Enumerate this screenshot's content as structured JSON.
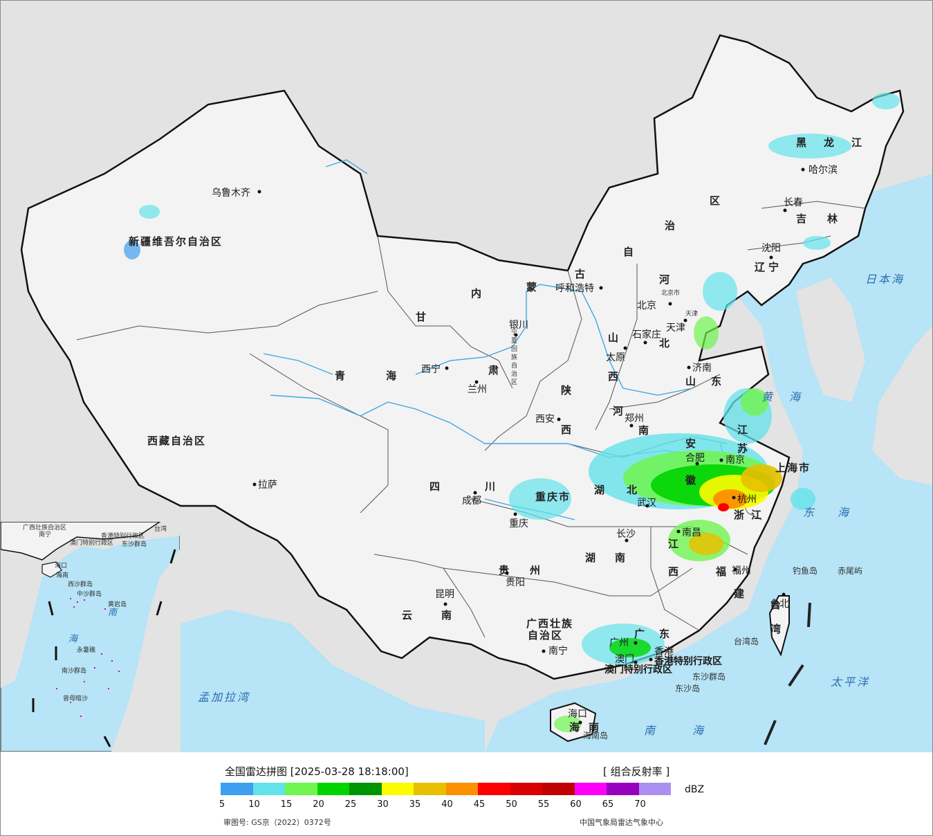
{
  "legend": {
    "title": "全国雷达拼图 [2025-03-28 18:18:00]",
    "product": "[ 组合反射率 ]",
    "unit": "dBZ",
    "ticks": [
      "5",
      "10",
      "15",
      "20",
      "25",
      "30",
      "35",
      "40",
      "45",
      "50",
      "55",
      "60",
      "65",
      "70"
    ],
    "colors": [
      "#3e9ef0",
      "#63e2ea",
      "#70f450",
      "#00d400",
      "#009400",
      "#fcfc00",
      "#e8c000",
      "#fc9000",
      "#fc0000",
      "#d80000",
      "#c00000",
      "#fc00fc",
      "#9800c0",
      "#ac90f0"
    ],
    "approval": "审图号: GS京（2022）0372号",
    "agency": "中国气象局雷达气象中心"
  },
  "map": {
    "provinces": [
      {
        "name": "新疆维吾尔自治区",
        "id": "xinjiang"
      },
      {
        "name": "西藏自治区",
        "id": "xizang"
      },
      {
        "name": "青",
        "id": "qing"
      },
      {
        "name": "海",
        "id": "hai"
      },
      {
        "name": "甘",
        "id": "gan"
      },
      {
        "name": "肃",
        "id": "su"
      },
      {
        "name": "内",
        "id": "nei"
      },
      {
        "name": "蒙",
        "id": "meng"
      },
      {
        "name": "古",
        "id": "gu"
      },
      {
        "name": "自",
        "id": "zi"
      },
      {
        "name": "治",
        "id": "zhi"
      },
      {
        "name": "区",
        "id": "qu"
      },
      {
        "name": "黑",
        "id": "hei"
      },
      {
        "name": "龙",
        "id": "long"
      },
      {
        "name": "江",
        "id": "jiang"
      },
      {
        "name": "吉",
        "id": "ji"
      },
      {
        "name": "林",
        "id": "lin"
      },
      {
        "name": "辽",
        "id": "liao"
      },
      {
        "name": "宁",
        "id": "ning"
      },
      {
        "name": "河",
        "id": "he1"
      },
      {
        "name": "北",
        "id": "bei"
      },
      {
        "name": "山",
        "id": "shan"
      },
      {
        "name": "西",
        "id": "xi"
      },
      {
        "name": "山",
        "id": "shan2"
      },
      {
        "name": "东",
        "id": "dong"
      },
      {
        "name": "陕",
        "id": "shaan"
      },
      {
        "name": "西",
        "id": "xi2"
      },
      {
        "name": "河",
        "id": "he2"
      },
      {
        "name": "南",
        "id": "nan"
      },
      {
        "name": "江",
        "id": "jiang2"
      },
      {
        "name": "苏",
        "id": "su2"
      },
      {
        "name": "安",
        "id": "an"
      },
      {
        "name": "徽",
        "id": "hui"
      },
      {
        "name": "上海市",
        "id": "shanghai"
      },
      {
        "name": "湖",
        "id": "hu"
      },
      {
        "name": "北",
        "id": "bei2"
      },
      {
        "name": "浙",
        "id": "zhe"
      },
      {
        "name": "江",
        "id": "jiang3"
      },
      {
        "name": "四",
        "id": "si"
      },
      {
        "name": "川",
        "id": "chuan"
      },
      {
        "name": "重庆市",
        "id": "chongqing"
      },
      {
        "name": "湖",
        "id": "hu2"
      },
      {
        "name": "南",
        "id": "nan2"
      },
      {
        "name": "江",
        "id": "jiang4"
      },
      {
        "name": "西",
        "id": "xi3"
      },
      {
        "name": "福",
        "id": "fu"
      },
      {
        "name": "建",
        "id": "jian"
      },
      {
        "name": "贵",
        "id": "gui"
      },
      {
        "name": "州",
        "id": "zhou"
      },
      {
        "name": "云",
        "id": "yun"
      },
      {
        "name": "南",
        "id": "nan3"
      },
      {
        "name": "广西壮族",
        "id": "gx1"
      },
      {
        "name": "自治区",
        "id": "gx2"
      },
      {
        "name": "广",
        "id": "guang"
      },
      {
        "name": "东",
        "id": "dong2"
      },
      {
        "name": "海",
        "id": "hai2"
      },
      {
        "name": "南",
        "id": "nan4"
      },
      {
        "name": "台",
        "id": "tai"
      },
      {
        "name": "湾",
        "id": "wan"
      },
      {
        "name": "宁夏回族自治区",
        "id": "ningxia"
      },
      {
        "name": "香港特别行政区",
        "id": "hk"
      },
      {
        "name": "澳门特别行政区",
        "id": "mo"
      },
      {
        "name": "北京市",
        "id": "bjs"
      },
      {
        "name": "天津",
        "id": "tjs"
      }
    ],
    "cities": [
      "乌鲁木齐",
      "拉萨",
      "西宁",
      "兰州",
      "银川",
      "呼和浩特",
      "北京",
      "天津",
      "石家庄",
      "太原",
      "济南",
      "郑州",
      "西安",
      "成都",
      "重庆",
      "贵阳",
      "昆明",
      "南宁",
      "广州",
      "澳门",
      "香港",
      "海口",
      "长沙",
      "武汉",
      "南昌",
      "合肥",
      "南京",
      "杭州",
      "福州",
      "台北",
      "沈阳",
      "长春",
      "哈尔滨"
    ],
    "seas": [
      "日本海",
      "黄",
      "海",
      "东",
      "海",
      "太平洋",
      "南",
      "海",
      "孟加拉湾"
    ],
    "islands": [
      "钓鱼岛",
      "赤尾屿",
      "台湾岛",
      "东沙群岛",
      "东沙岛",
      "海南岛"
    ],
    "inset": [
      "广西壮族自治区",
      "南宁",
      "台湾",
      "香港特别行政区",
      "澳门特别行政区",
      "东沙群岛",
      "海口",
      "海南",
      "西沙群岛",
      "中沙群岛",
      "黄岩岛",
      "南",
      "海",
      "永暑礁",
      "南沙群岛",
      "曾母暗沙"
    ]
  }
}
